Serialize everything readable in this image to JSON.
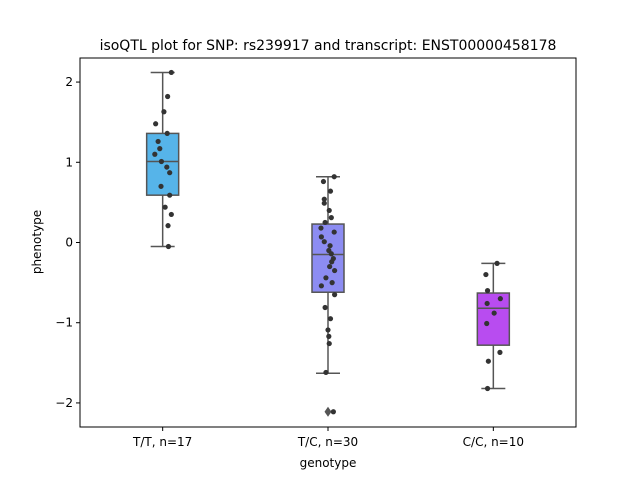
{
  "chart_data": {
    "type": "box",
    "title": "isoQTL plot for SNP: rs239917 and transcript: ENST00000458178",
    "xlabel": "genotype",
    "ylabel": "phenotype",
    "ylim": [
      -2.3,
      2.3
    ],
    "yticks": [
      2,
      1,
      0,
      -1,
      -2
    ],
    "ytick_labels": [
      "2",
      "1",
      "0",
      "−1",
      "−2"
    ],
    "categories": [
      "T/T, n=17",
      "T/C, n=30",
      "C/C, n=10"
    ],
    "boxes": [
      {
        "category": "T/T, n=17",
        "color": "#56b4e9",
        "whisker_low": -0.05,
        "q1": 0.59,
        "median": 1.01,
        "q3": 1.36,
        "whisker_high": 2.12,
        "outliers": [],
        "points": [
          {
            "x": 0.21,
            "y": 2.12
          },
          {
            "x": 0.12,
            "y": 1.82
          },
          {
            "x": 0.03,
            "y": 1.63
          },
          {
            "x": -0.17,
            "y": 1.48
          },
          {
            "x": 0.11,
            "y": 1.36
          },
          {
            "x": -0.11,
            "y": 1.26
          },
          {
            "x": -0.07,
            "y": 1.17
          },
          {
            "x": -0.19,
            "y": 1.1
          },
          {
            "x": -0.03,
            "y": 1.01
          },
          {
            "x": 0.1,
            "y": 0.94
          },
          {
            "x": 0.17,
            "y": 0.87
          },
          {
            "x": -0.04,
            "y": 0.7
          },
          {
            "x": 0.17,
            "y": 0.59
          },
          {
            "x": 0.06,
            "y": 0.44
          },
          {
            "x": 0.21,
            "y": 0.35
          },
          {
            "x": 0.13,
            "y": 0.21
          },
          {
            "x": 0.14,
            "y": -0.05
          }
        ]
      },
      {
        "category": "T/C, n=30",
        "color": "#8c8cf2",
        "whisker_low": -1.63,
        "q1": -0.62,
        "median": -0.15,
        "q3": 0.23,
        "whisker_high": 0.82,
        "outliers": [
          -2.11
        ],
        "points": [
          {
            "x": 0.15,
            "y": 0.82
          },
          {
            "x": -0.11,
            "y": 0.76
          },
          {
            "x": 0.06,
            "y": 0.64
          },
          {
            "x": -0.09,
            "y": 0.54
          },
          {
            "x": -0.09,
            "y": 0.49
          },
          {
            "x": 0.03,
            "y": 0.4
          },
          {
            "x": 0.08,
            "y": 0.31
          },
          {
            "x": -0.07,
            "y": 0.25
          },
          {
            "x": -0.17,
            "y": 0.18
          },
          {
            "x": 0.15,
            "y": 0.13
          },
          {
            "x": -0.16,
            "y": 0.07
          },
          {
            "x": -0.09,
            "y": 0.01
          },
          {
            "x": 0.05,
            "y": -0.04
          },
          {
            "x": 0.02,
            "y": -0.1
          },
          {
            "x": 0.08,
            "y": -0.14
          },
          {
            "x": 0.13,
            "y": -0.2
          },
          {
            "x": 0.09,
            "y": -0.24
          },
          {
            "x": 0.04,
            "y": -0.3
          },
          {
            "x": 0.16,
            "y": -0.35
          },
          {
            "x": -0.05,
            "y": -0.44
          },
          {
            "x": 0.1,
            "y": -0.5
          },
          {
            "x": -0.16,
            "y": -0.54
          },
          {
            "x": 0.16,
            "y": -0.65
          },
          {
            "x": -0.07,
            "y": -0.81
          },
          {
            "x": 0.06,
            "y": -0.95
          },
          {
            "x": 0.0,
            "y": -1.09
          },
          {
            "x": 0.02,
            "y": -1.17
          },
          {
            "x": 0.03,
            "y": -1.26
          },
          {
            "x": -0.05,
            "y": -1.62
          },
          {
            "x": 0.13,
            "y": -2.11
          }
        ]
      },
      {
        "category": "C/C, n=10",
        "color": "#b84cf0",
        "whisker_low": -1.82,
        "q1": -1.28,
        "median": -0.82,
        "q3": -0.63,
        "whisker_high": -0.26,
        "outliers": [],
        "points": [
          {
            "x": 0.09,
            "y": -0.26
          },
          {
            "x": -0.18,
            "y": -0.4
          },
          {
            "x": -0.14,
            "y": -0.6
          },
          {
            "x": 0.17,
            "y": -0.7
          },
          {
            "x": -0.15,
            "y": -0.76
          },
          {
            "x": 0.02,
            "y": -0.88
          },
          {
            "x": -0.16,
            "y": -1.01
          },
          {
            "x": 0.16,
            "y": -1.37
          },
          {
            "x": -0.12,
            "y": -1.48
          },
          {
            "x": -0.14,
            "y": -1.82
          }
        ]
      }
    ],
    "point_color": "#333333",
    "box_edge_color": "#555555",
    "grid": false,
    "legend": "none"
  }
}
